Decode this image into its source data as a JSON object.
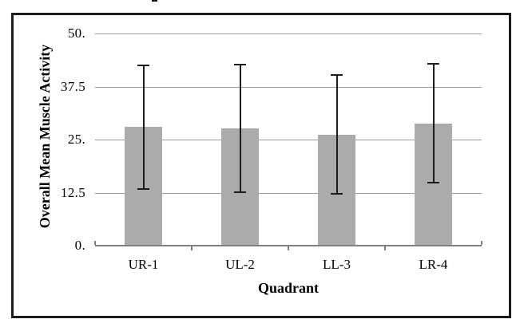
{
  "figure": {
    "background": "#ffffff",
    "frame_color": "#1c1c1c",
    "cropped_text_fragment": "partial character cut off at top edge"
  },
  "chart_data": {
    "type": "bar",
    "title": "",
    "xlabel": "Quadrant",
    "ylabel": "Overall Mean Muscle Activity",
    "categories": [
      "UR-1",
      "UL-2",
      "LL-3",
      "LR-4"
    ],
    "values": [
      28.0,
      27.6,
      26.2,
      28.8
    ],
    "error_upper": [
      42.7,
      42.9,
      40.4,
      43.0
    ],
    "error_lower": [
      13.4,
      12.6,
      12.2,
      14.8
    ],
    "ylim": [
      0,
      50
    ],
    "ytick_values": [
      0,
      12.5,
      25,
      37.5,
      50
    ],
    "ytick_labels": [
      "0.",
      "12.5",
      "25.",
      "37.5",
      "50."
    ],
    "grid": true,
    "legend": "none",
    "bar_color": "#ababab",
    "gridline_color": "#9a9a9a",
    "axis_line_color": "#7f7f7f",
    "error_bar_color": "#1c1c1c",
    "text_color": "#000000"
  }
}
